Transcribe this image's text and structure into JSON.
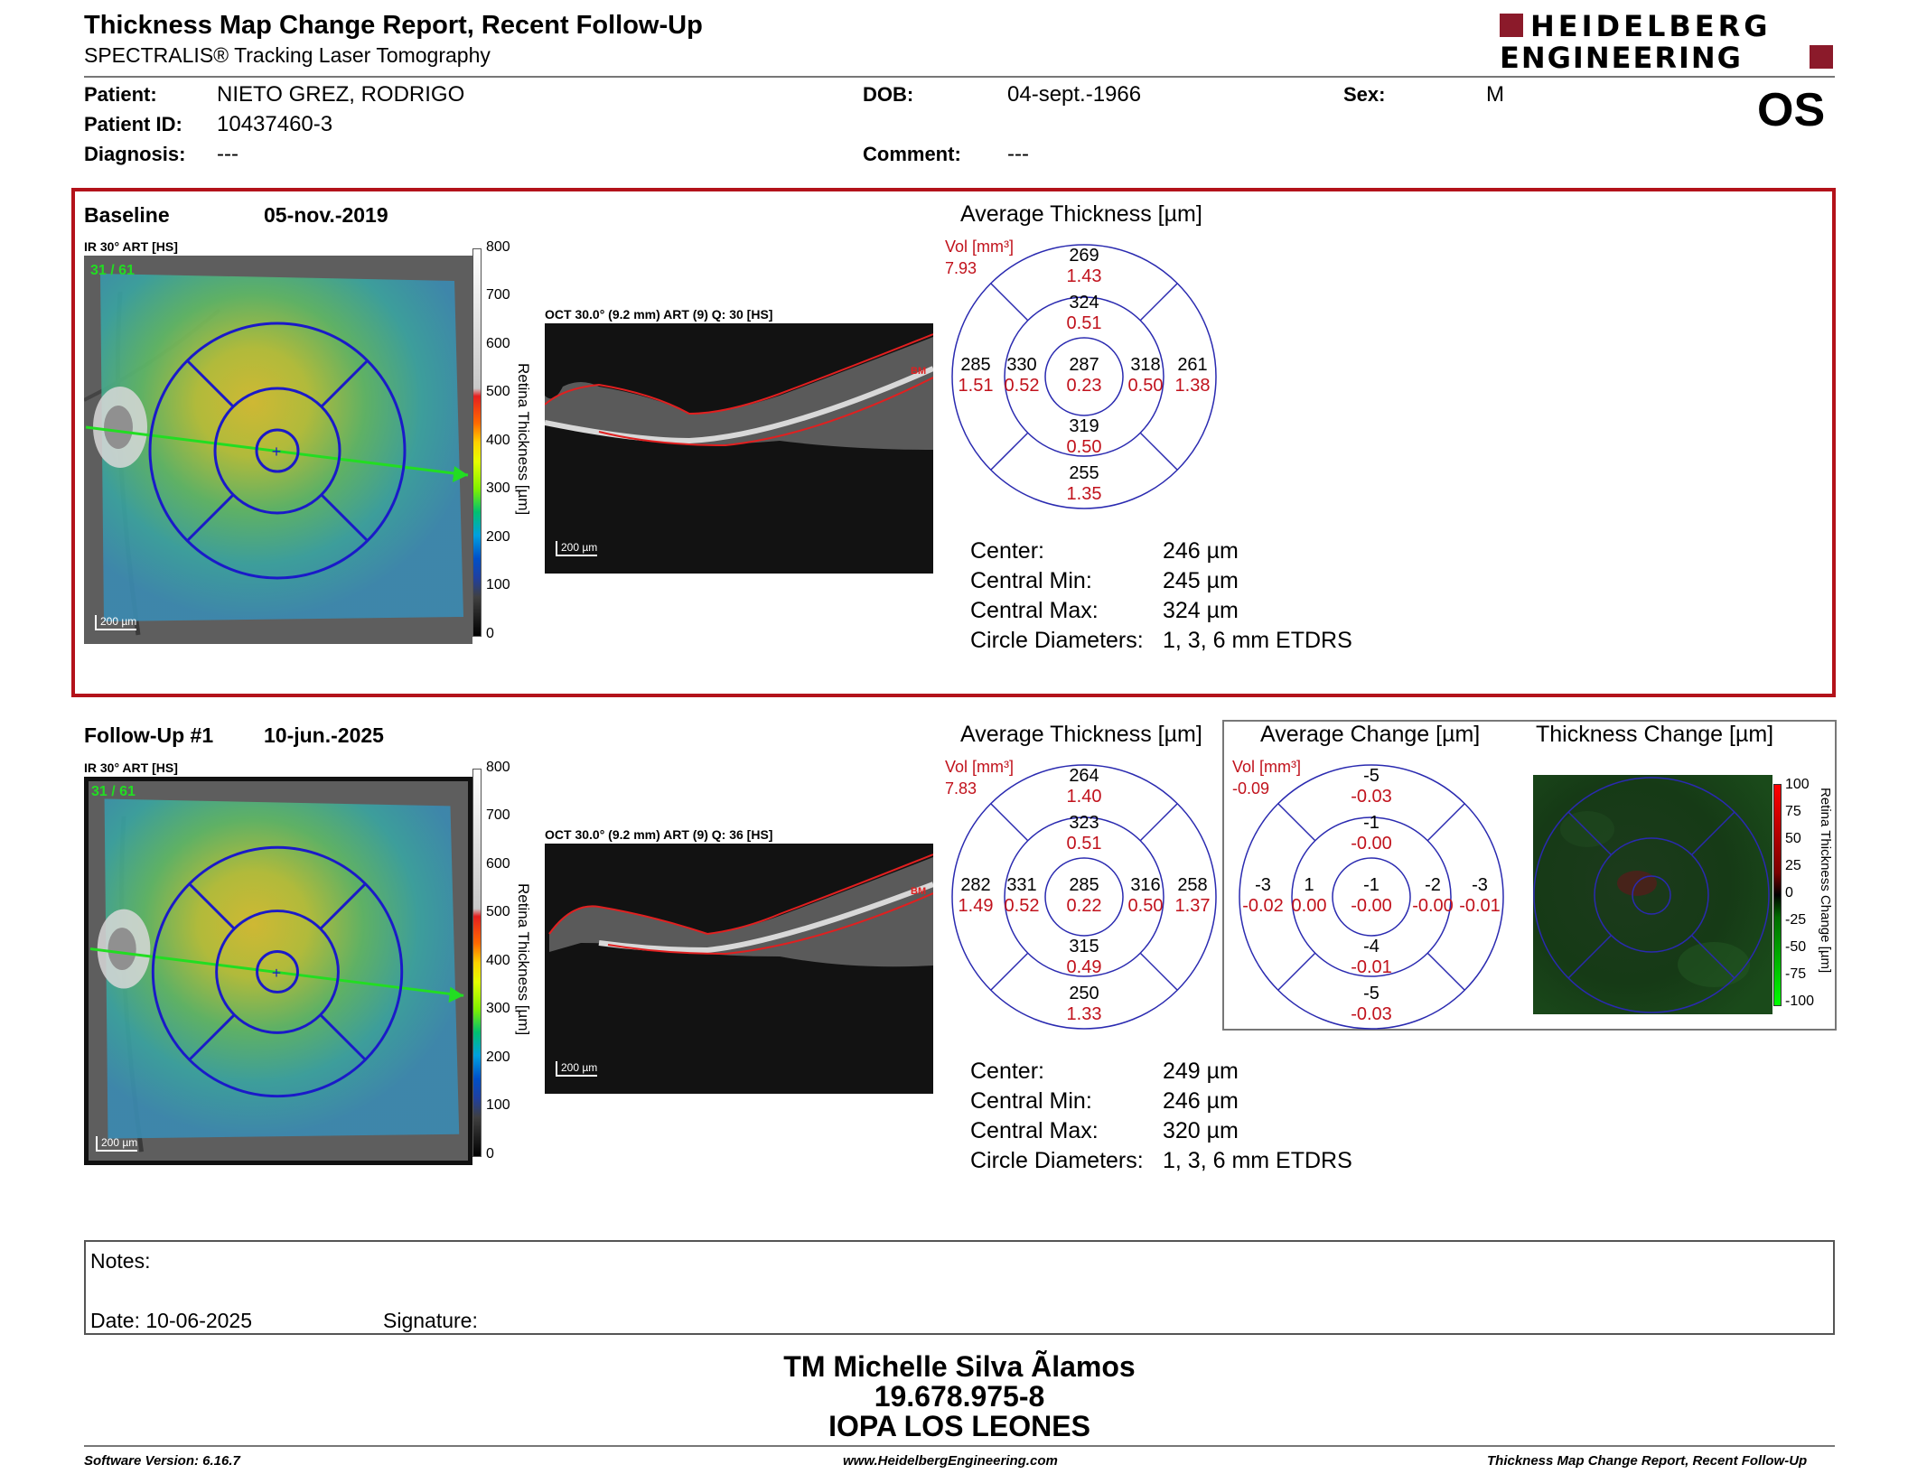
{
  "report": {
    "title": "Thickness Map Change Report, Recent Follow-Up",
    "subtitle": "SPECTRALIS® Tracking Laser Tomography",
    "logo_line1": "HEIDELBERG",
    "logo_line2": "ENGINEERING",
    "eye": "OS"
  },
  "patient": {
    "patient_label": "Patient:",
    "patient_value": "NIETO GREZ, RODRIGO",
    "id_label": "Patient ID:",
    "id_value": "10437460-3",
    "diagnosis_label": "Diagnosis:",
    "diagnosis_value": "---",
    "dob_label": "DOB:",
    "dob_value": "04-sept.-1966",
    "comment_label": "Comment:",
    "comment_value": "---",
    "sex_label": "Sex:",
    "sex_value": "M"
  },
  "baseline": {
    "label": "Baseline",
    "date": "05-nov.-2019",
    "ir_label": "IR 30° ART [HS]",
    "frame": "31 / 61",
    "scale": "200 µm",
    "oct_label": "OCT 30.0° (9.2 mm) ART (9) Q: 30 [HS]",
    "oct_scale": "200 µm",
    "avg_title": "Average Thickness [µm]",
    "vol_label": "Vol [mm³]",
    "vol_value": "7.93",
    "grid": {
      "outer_top": [
        "269",
        "1.43"
      ],
      "inner_top": [
        "324",
        "0.51"
      ],
      "outer_left": [
        "285",
        "1.51"
      ],
      "inner_left": [
        "330",
        "0.52"
      ],
      "center": [
        "287",
        "0.23"
      ],
      "inner_right": [
        "318",
        "0.50"
      ],
      "outer_right": [
        "261",
        "1.38"
      ],
      "inner_bottom": [
        "319",
        "0.50"
      ],
      "outer_bottom": [
        "255",
        "1.35"
      ]
    },
    "stats": {
      "center_label": "Center:",
      "center_value": "246 µm",
      "min_label": "Central Min:",
      "min_value": "245 µm",
      "max_label": "Central Max:",
      "max_value": "324 µm",
      "circ_label": "Circle Diameters:",
      "circ_value": "1, 3, 6 mm ETDRS"
    }
  },
  "followup": {
    "label": "Follow-Up #1",
    "date": "10-jun.-2025",
    "ir_label": "IR 30° ART [HS]",
    "frame": "31 / 61",
    "scale": "200 µm",
    "oct_label": "OCT 30.0° (9.2 mm) ART (9) Q: 36 [HS]",
    "oct_scale": "200 µm",
    "avg_title": "Average Thickness [µm]",
    "vol_label": "Vol [mm³]",
    "vol_value": "7.83",
    "grid": {
      "outer_top": [
        "264",
        "1.40"
      ],
      "inner_top": [
        "323",
        "0.51"
      ],
      "outer_left": [
        "282",
        "1.49"
      ],
      "inner_left": [
        "331",
        "0.52"
      ],
      "center": [
        "285",
        "0.22"
      ],
      "inner_right": [
        "316",
        "0.50"
      ],
      "outer_right": [
        "258",
        "1.37"
      ],
      "inner_bottom": [
        "315",
        "0.49"
      ],
      "outer_bottom": [
        "250",
        "1.33"
      ]
    },
    "stats": {
      "center_label": "Center:",
      "center_value": "249 µm",
      "min_label": "Central Min:",
      "min_value": "246 µm",
      "max_label": "Central Max:",
      "max_value": "320 µm",
      "circ_label": "Circle Diameters:",
      "circ_value": "1, 3, 6 mm ETDRS"
    }
  },
  "change": {
    "avg_title": "Average Change [µm]",
    "vol_label": "Vol [mm³]",
    "vol_value": "-0.09",
    "grid": {
      "outer_top": [
        "-5",
        "-0.03"
      ],
      "inner_top": [
        "-1",
        "-0.00"
      ],
      "outer_left": [
        "-3",
        "-0.02"
      ],
      "inner_left": [
        "1",
        "0.00"
      ],
      "center": [
        "-1",
        "-0.00"
      ],
      "inner_right": [
        "-2",
        "-0.00"
      ],
      "outer_right": [
        "-3",
        "-0.01"
      ],
      "inner_bottom": [
        "-4",
        "-0.01"
      ],
      "outer_bottom": [
        "-5",
        "-0.03"
      ]
    },
    "map_title": "Thickness Change [µm]",
    "cbar_title": "Retina Thickness Change [µm]",
    "cbar_ticks": [
      "100",
      "75",
      "50",
      "25",
      "0",
      "-25",
      "-50",
      "-75",
      "-100"
    ]
  },
  "colorbar": {
    "title": "Retina Thickness [µm]",
    "ticks": [
      "800",
      "700",
      "600",
      "500",
      "400",
      "300",
      "200",
      "100",
      "0"
    ]
  },
  "notes": {
    "notes_label": "Notes:",
    "date_label": "Date: 10-06-2025",
    "signature_label": "Signature:"
  },
  "signature": {
    "name": "TM Michelle Silva Ãlamos",
    "id": "19.678.975-8",
    "org": "IOPA LOS LEONES"
  },
  "footer": {
    "version": "Software Version: 6.16.7",
    "url": "www.HeidelbergEngineering.com",
    "report": "Thickness Map Change Report, Recent Follow-Up"
  },
  "colors": {
    "frame_red": "#b3121a",
    "value_red": "#c1121c",
    "grid_blue": "#1a1ac8",
    "scan_green": "#22dd22"
  }
}
